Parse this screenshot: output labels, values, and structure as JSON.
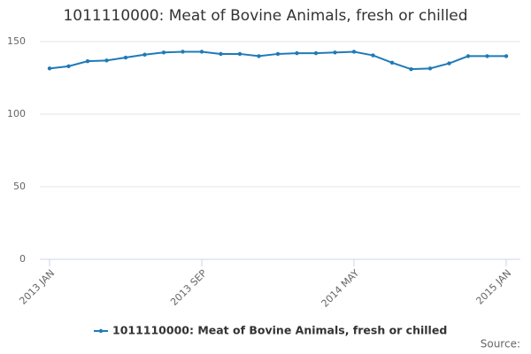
{
  "chart_data": {
    "type": "line",
    "title": "1011110000: Meat of Bovine Animals, fresh or chilled",
    "categories": [
      "2013 JAN",
      null,
      null,
      null,
      null,
      null,
      null,
      null,
      "2013 SEP",
      null,
      null,
      null,
      null,
      null,
      null,
      null,
      "2014 MAY",
      null,
      null,
      null,
      null,
      null,
      null,
      null,
      "2015 JAN"
    ],
    "series": [
      {
        "name": "1011110000: Meat of Bovine Animals, fresh or chilled",
        "color": "#1f7ab8",
        "values": [
          131.5,
          133,
          136.5,
          137,
          139,
          141,
          142.5,
          143,
          143,
          141.5,
          141.5,
          140,
          141.5,
          142,
          142,
          142.5,
          143,
          140.5,
          135.5,
          131,
          131.5,
          135,
          140,
          140,
          140
        ]
      }
    ],
    "ylim": [
      0,
      150
    ],
    "yticks": [
      0,
      50,
      100,
      150
    ],
    "grid": true,
    "legend": "bottom",
    "source": "Source:"
  }
}
